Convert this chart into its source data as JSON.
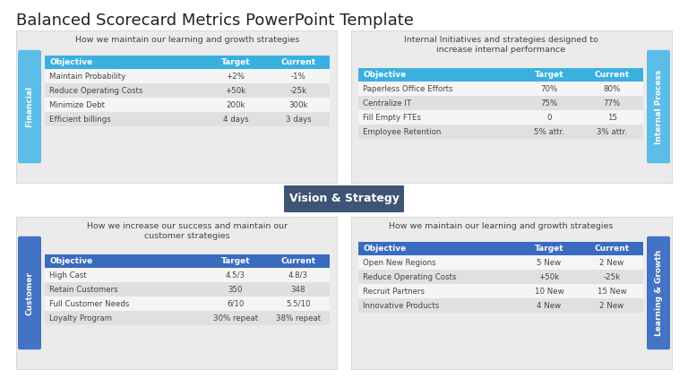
{
  "title": "Balanced Scorecard Metrics PowerPoint Template",
  "title_fontsize": 13,
  "background_color": "#ffffff",
  "financial_title": "How we maintain our learning and growth strategies",
  "financial_label": "Financial",
  "financial_header_color": "#3ab0e0",
  "financial_tab_color": "#5bbde8",
  "financial_headers": [
    "Objective",
    "Target",
    "Current"
  ],
  "financial_rows": [
    [
      "Maintain Probability",
      "+2%",
      "-1%"
    ],
    [
      "Reduce Operating Costs",
      "+50k",
      "-25k"
    ],
    [
      "Minimize Debt",
      "200k",
      "300k"
    ],
    [
      "Efficient billings",
      "4 days",
      "3 days"
    ]
  ],
  "internal_title": "Internal Initiatives and strategies designed to\nincrease internal performance",
  "internal_label": "Internal Process",
  "internal_header_color": "#3ab0e0",
  "internal_tab_color": "#5bbde8",
  "internal_headers": [
    "Objective",
    "Target",
    "Current"
  ],
  "internal_rows": [
    [
      "Paperless Office Efforts",
      "70%",
      "80%"
    ],
    [
      "Centralize IT",
      "75%",
      "77%"
    ],
    [
      "Fill Empty FTEs",
      "0",
      "15"
    ],
    [
      "Employee Retention",
      "5% attr.",
      "3% attr."
    ]
  ],
  "customer_title": "How we increase our success and maintain our\ncustomer strategies",
  "customer_label": "Customer",
  "customer_header_color": "#3a6bbf",
  "customer_tab_color": "#4472c4",
  "customer_headers": [
    "Objective",
    "Target",
    "Current"
  ],
  "customer_rows": [
    [
      "High Cast",
      "4.5/3",
      "4.8/3"
    ],
    [
      "Retain Customers",
      "350",
      "348"
    ],
    [
      "Full Customer Needs",
      "6/10",
      "5.5/10"
    ],
    [
      "Loyalty Program",
      "30% repeat",
      "38% repeat"
    ]
  ],
  "learning_title": "How we maintain our learning and growth strategies",
  "learning_label": "Learning & Growth",
  "learning_header_color": "#3a6bbf",
  "learning_tab_color": "#4472c4",
  "learning_headers": [
    "Objective",
    "Target",
    "Current"
  ],
  "learning_rows": [
    [
      "Open New Regions",
      "5 New",
      "2 New"
    ],
    [
      "Reduce Operating Costs",
      "+50k",
      "-25k"
    ],
    [
      "Recruit Partners",
      "10 New",
      "15 New"
    ],
    [
      "Innovative Products",
      "4 New",
      "2 New"
    ]
  ],
  "vision_text": "Vision & Strategy",
  "vision_bg": "#3d5475",
  "panel_bg": "#ebebeb",
  "row_odd_bg": "#f5f5f5",
  "row_even_bg": "#e0e0e0",
  "text_color": "#444444",
  "header_text_color": "#ffffff"
}
